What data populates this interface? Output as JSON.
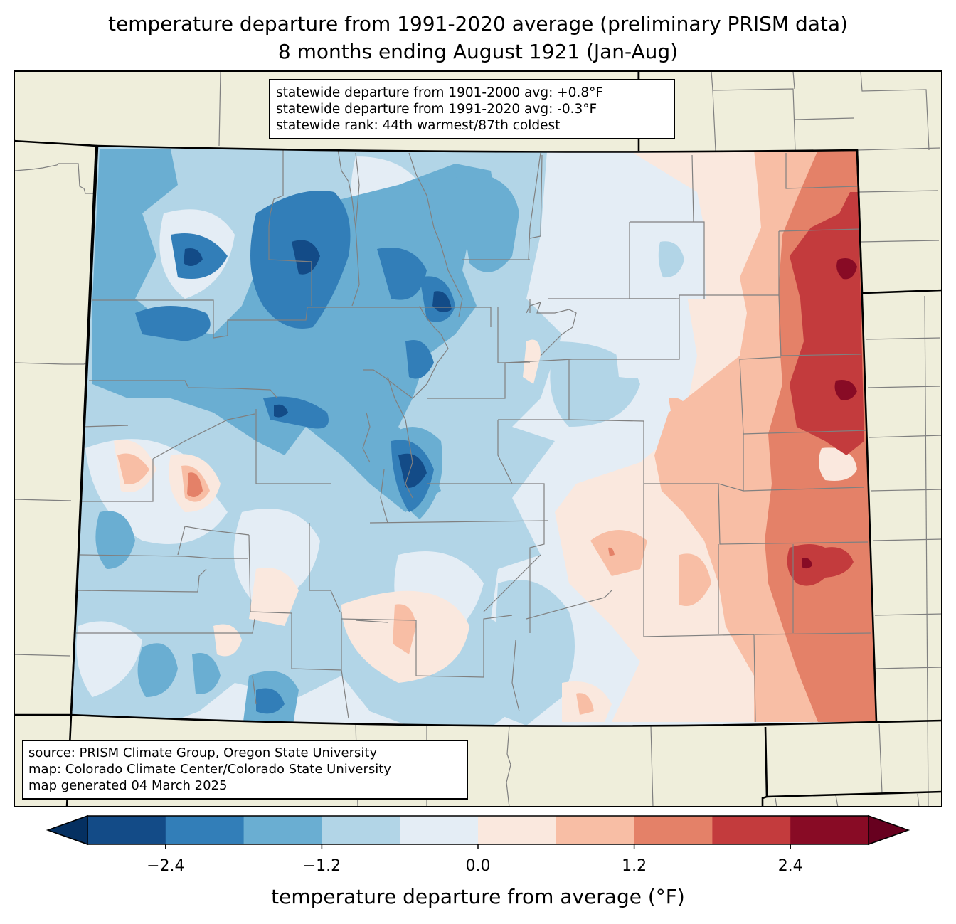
{
  "title": {
    "line1": "temperature departure from 1991-2020 average (preliminary PRISM data)",
    "line2": "8 months ending August 1921 (Jan-Aug)"
  },
  "stats": {
    "line1": "statewide departure from 1901-2000 avg: +0.8°F",
    "line2": "statewide departure from 1991-2020 avg: -0.3°F",
    "line3": "statewide rank: 44th warmest/87th coldest"
  },
  "credits": {
    "line1": "source: PRISM Climate Group, Oregon State University",
    "line2": "map: Colorado Climate Center/Colorado State University",
    "line3": "map generated 04 March 2025"
  },
  "colors": {
    "land_background": "#efeedb",
    "state_border": "#000000",
    "county_border": "#808080"
  },
  "colorbar": {
    "label": "temperature departure from average (°F)",
    "range": [
      -3.0,
      3.0
    ],
    "extend": "both",
    "extend_min_color": "#053061",
    "extend_max_color": "#67001f",
    "bins": [
      {
        "from": -3.0,
        "to": -2.4,
        "color": "#134b87"
      },
      {
        "from": -2.4,
        "to": -1.8,
        "color": "#327eb8"
      },
      {
        "from": -1.8,
        "to": -1.2,
        "color": "#6aaed2"
      },
      {
        "from": -1.2,
        "to": -0.6,
        "color": "#b2d5e7"
      },
      {
        "from": -0.6,
        "to": 0.0,
        "color": "#e4edf5"
      },
      {
        "from": 0.0,
        "to": 0.6,
        "color": "#fae8de"
      },
      {
        "from": 0.6,
        "to": 1.2,
        "color": "#f8bea5"
      },
      {
        "from": 1.2,
        "to": 1.8,
        "color": "#e48168"
      },
      {
        "from": 1.8,
        "to": 2.4,
        "color": "#c33b3d"
      },
      {
        "from": 2.4,
        "to": 3.0,
        "color": "#880b25"
      }
    ],
    "ticks": [
      {
        "value": -2.4,
        "label": "−2.4"
      },
      {
        "value": -1.2,
        "label": "−1.2"
      },
      {
        "value": 0.0,
        "label": "0.0"
      },
      {
        "value": 1.2,
        "label": "1.2"
      },
      {
        "value": 2.4,
        "label": "2.4"
      }
    ]
  },
  "chart_data": {
    "type": "heatmap",
    "title": "temperature departure from 1991-2020 average (preliminary PRISM data)",
    "subtitle": "8 months ending August 1921 (Jan-Aug)",
    "region": "Colorado",
    "colorbar_label": "temperature departure from average (°F)",
    "value_range": [
      -3.0,
      3.0
    ],
    "levels": [
      -3.0,
      -2.4,
      -1.8,
      -1.2,
      -0.6,
      0.0,
      0.6,
      1.2,
      1.8,
      2.4,
      3.0
    ],
    "pattern": {
      "west_mountains": "below average (-0.6 to -3.0)",
      "central_plains": "near average (-0.6 to 0.6)",
      "eastern_plains": "above average (0.6 to 3.0)"
    },
    "statewide_departure_1901_2000": 0.8,
    "statewide_departure_1991_2020": -0.3,
    "rank_warmest": 44,
    "rank_coldest": 87
  }
}
